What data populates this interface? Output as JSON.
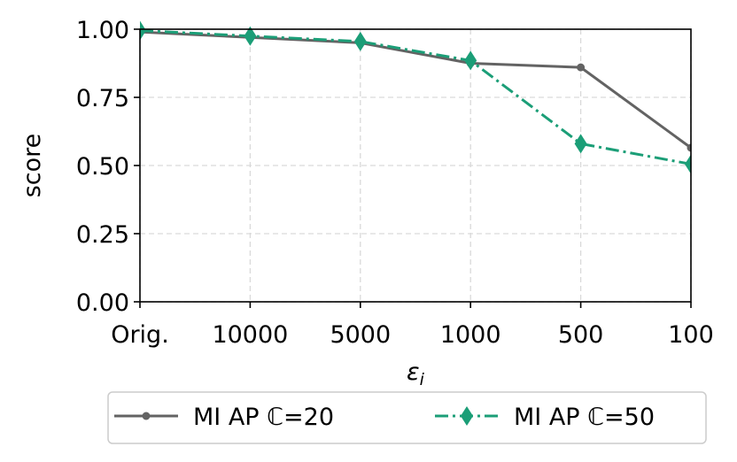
{
  "chart_data": {
    "type": "line",
    "categories": [
      "Orig.",
      "10000",
      "5000",
      "1000",
      "500",
      "100"
    ],
    "xlabel": "ε",
    "xlabel_sub": "i",
    "ylabel": "score",
    "ylim": [
      0,
      1
    ],
    "yticks": [
      "0.00",
      "0.25",
      "0.50",
      "0.75",
      "1.00"
    ],
    "grid": true,
    "legend_position": "below",
    "series": [
      {
        "name": "MI AP ℂ=20",
        "color": "#636363",
        "marker": "circle",
        "linestyle": "solid",
        "values": [
          0.99,
          0.97,
          0.95,
          0.875,
          0.86,
          0.565
        ]
      },
      {
        "name": "MI AP ℂ=50",
        "color": "#1b9e77",
        "marker": "diamond",
        "linestyle": "dashdot",
        "values": [
          0.995,
          0.975,
          0.955,
          0.885,
          0.58,
          0.505
        ]
      }
    ]
  }
}
